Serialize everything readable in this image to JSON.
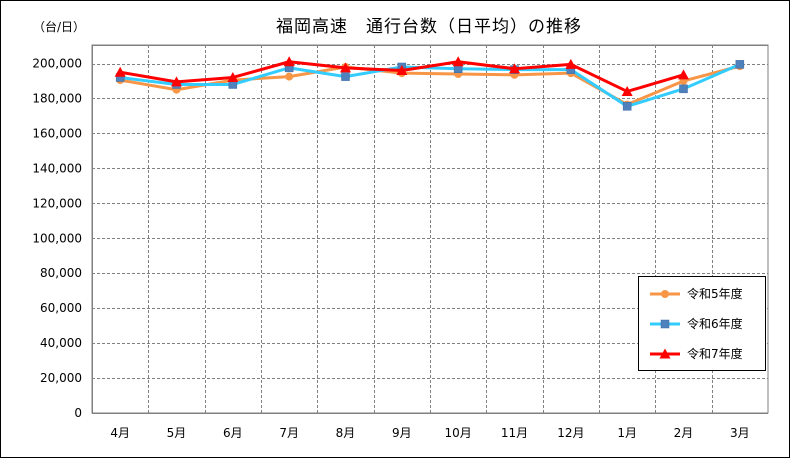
{
  "chart_data": {
    "type": "line",
    "title": "福岡高速　通行台数（日平均）の推移",
    "ylabel": "（台/日）",
    "xlabel": "",
    "categories": [
      "4月",
      "5月",
      "6月",
      "7月",
      "8月",
      "9月",
      "10月",
      "11月",
      "12月",
      "1月",
      "2月",
      "3月"
    ],
    "yticks": [
      "0",
      "20,000",
      "40,000",
      "60,000",
      "80,000",
      "100,000",
      "120,000",
      "140,000",
      "160,000",
      "180,000",
      "200,000"
    ],
    "ylim": [
      0,
      200000
    ],
    "grid": true,
    "legend_position": "right",
    "series": [
      {
        "name": "令和5年度",
        "color": "#f79646",
        "marker": "circle",
        "values": [
          190500,
          185000,
          190500,
          192500,
          198000,
          194500,
          194000,
          193500,
          194500,
          176500,
          190000,
          198500
        ]
      },
      {
        "name": "令和6年度",
        "color": "#33ccff",
        "marker": "square",
        "values": [
          192000,
          188000,
          188000,
          197500,
          192500,
          198000,
          197000,
          196500,
          196500,
          175500,
          185500,
          199500
        ]
      },
      {
        "name": "令和7年度",
        "color": "#ff0000",
        "marker": "triangle",
        "values": [
          195000,
          189500,
          192000,
          201000,
          197500,
          196000,
          201000,
          197000,
          199500,
          184000,
          193500,
          null
        ]
      }
    ]
  }
}
